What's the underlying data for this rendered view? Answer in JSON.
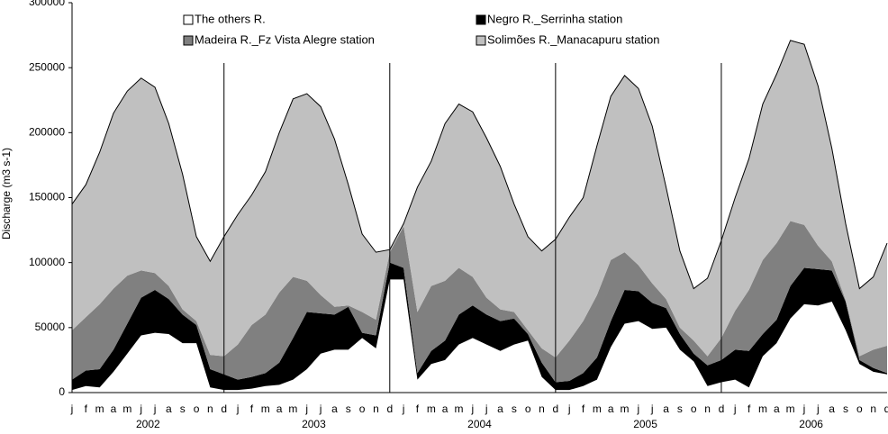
{
  "chart_data": {
    "type": "stacked_area",
    "y_label": "Discharge (m3 s-1)",
    "categories": [
      "j",
      "f",
      "m",
      "a",
      "m",
      "j",
      "j",
      "a",
      "s",
      "o",
      "n",
      "d",
      "j",
      "f",
      "m",
      "a",
      "m",
      "j",
      "j",
      "a",
      "s",
      "o",
      "n",
      "d",
      "j",
      "f",
      "m",
      "a",
      "m",
      "j",
      "j",
      "a",
      "s",
      "o",
      "n",
      "d",
      "j",
      "f",
      "m",
      "a",
      "m",
      "j",
      "j",
      "a",
      "s",
      "o",
      "n",
      "d",
      "j",
      "f",
      "m",
      "a",
      "m",
      "j",
      "j",
      "a",
      "s",
      "o",
      "n",
      "d"
    ],
    "years": [
      "2002",
      "2003",
      "2004",
      "2005",
      "2006"
    ],
    "ylim": [
      0,
      300000
    ],
    "yticks": [
      0,
      50000,
      100000,
      150000,
      200000,
      250000,
      300000
    ],
    "series": [
      {
        "name": "The others R.",
        "color": "#ffffff",
        "values": [
          2000,
          5000,
          4000,
          16000,
          30000,
          44000,
          46000,
          45000,
          38000,
          38000,
          4000,
          2000,
          2000,
          3000,
          5000,
          6000,
          10000,
          18000,
          30000,
          33000,
          33000,
          42000,
          34000,
          87000,
          87000,
          10000,
          22000,
          25000,
          37000,
          42000,
          37000,
          32000,
          37000,
          40000,
          12000,
          2000,
          2000,
          5000,
          10000,
          35000,
          53000,
          55000,
          49000,
          50000,
          33000,
          24000,
          5000,
          8000,
          10000,
          4000,
          28000,
          38000,
          57000,
          68000,
          67000,
          70000,
          48000,
          22000,
          16000,
          14000
        ]
      },
      {
        "name": "Negro R._Serrinha station",
        "color": "#000000",
        "values": [
          8000,
          12000,
          14000,
          17000,
          23000,
          29000,
          33000,
          27000,
          22000,
          14000,
          14000,
          12000,
          8000,
          9000,
          10000,
          17000,
          32000,
          44000,
          31000,
          27000,
          33000,
          4000,
          10000,
          13000,
          9000,
          5000,
          10000,
          15000,
          23000,
          25000,
          23000,
          23000,
          20000,
          5000,
          11000,
          6000,
          7000,
          10000,
          17000,
          20000,
          26000,
          23000,
          20000,
          15000,
          12000,
          6000,
          16000,
          17000,
          23000,
          28000,
          17000,
          18000,
          25000,
          28000,
          28000,
          24000,
          22000,
          3000,
          3000,
          1000
        ]
      },
      {
        "name": "Madeira R._Fz Vista Alegre station",
        "color": "#808080",
        "values": [
          38000,
          41000,
          50000,
          47000,
          37000,
          21000,
          13000,
          10000,
          4000,
          3000,
          11000,
          14000,
          27000,
          40000,
          45000,
          54000,
          47000,
          24000,
          14000,
          6000,
          1000,
          16000,
          12000,
          8000,
          32000,
          47000,
          50000,
          46000,
          36000,
          22000,
          13000,
          9000,
          5000,
          3000,
          11000,
          19000,
          31000,
          40000,
          48000,
          47000,
          29000,
          20000,
          15000,
          7000,
          5000,
          10000,
          7000,
          17000,
          30000,
          47000,
          57000,
          59000,
          50000,
          33000,
          18000,
          7000,
          1000,
          3000,
          14000,
          21000
        ]
      },
      {
        "name": "Solimões R._Manacapuru station",
        "color": "#c0c0c0",
        "values": [
          97000,
          102000,
          117000,
          135000,
          142000,
          148000,
          143000,
          125000,
          104000,
          65000,
          72000,
          92000,
          100000,
          100000,
          110000,
          123000,
          137000,
          144000,
          145000,
          129000,
          93000,
          60000,
          52000,
          2000,
          2000,
          96000,
          96000,
          121000,
          126000,
          127000,
          123000,
          110000,
          83000,
          72000,
          75000,
          91000,
          95000,
          95000,
          115000,
          126000,
          136000,
          136000,
          121000,
          86000,
          59000,
          40000,
          60000,
          75000,
          87000,
          101000,
          120000,
          130000,
          139000,
          139000,
          123000,
          87000,
          59000,
          52000,
          56000,
          79000
        ]
      }
    ]
  }
}
